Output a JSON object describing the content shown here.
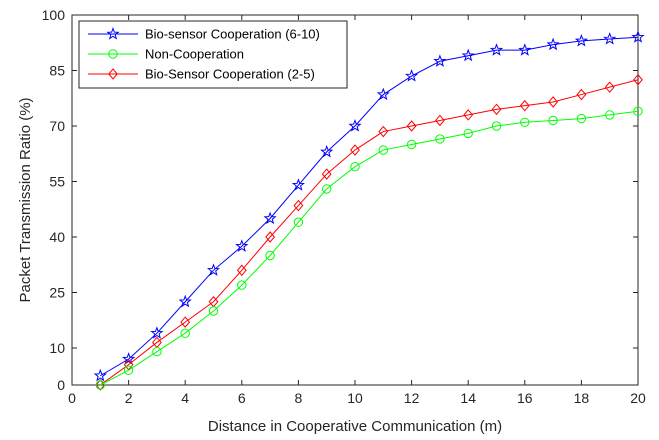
{
  "chart_data": {
    "type": "line",
    "xlabel": "Distance in Cooperative Communication (m)",
    "ylabel": "Packet Transmission Ratio (%)",
    "xlim": [
      0,
      20
    ],
    "ylim": [
      0,
      100
    ],
    "xticks": [
      0,
      2,
      4,
      6,
      8,
      10,
      12,
      14,
      16,
      18,
      20
    ],
    "yticks": [
      0,
      10,
      25,
      40,
      55,
      70,
      85,
      100
    ],
    "ytick_labels": [
      "0",
      "10",
      "25",
      "40",
      "55",
      "70",
      "85",
      "100"
    ],
    "grid": false,
    "legend_position": "top-left",
    "x": [
      1,
      2,
      3,
      4,
      5,
      6,
      7,
      8,
      9,
      10,
      11,
      12,
      13,
      14,
      15,
      16,
      17,
      18,
      19,
      20
    ],
    "series": [
      {
        "name": "Bio-sensor Cooperation (6-10)",
        "color": "#0000ff",
        "marker": "star",
        "values": [
          2.5,
          7,
          14,
          22.5,
          31,
          37.5,
          45,
          54,
          63,
          70,
          78.5,
          83.5,
          87.5,
          89,
          90.5,
          90.5,
          92,
          93,
          93.5,
          94
        ]
      },
      {
        "name": "Non-Cooperation",
        "color": "#00ff00",
        "marker": "circle",
        "values": [
          0,
          4,
          9,
          14,
          20,
          27,
          35,
          44,
          53,
          59,
          63.5,
          65,
          66.5,
          68,
          70,
          71,
          71.5,
          72,
          73,
          74
        ]
      },
      {
        "name": "Bio-Sensor Cooperation (2-5)",
        "color": "#ff0000",
        "marker": "diamond",
        "values": [
          0,
          5.5,
          11.5,
          17,
          22.5,
          31,
          40,
          48.5,
          57,
          63.5,
          68.5,
          70,
          71.5,
          73,
          74.5,
          75.5,
          76.5,
          78.5,
          80.5,
          82.5
        ]
      }
    ]
  }
}
